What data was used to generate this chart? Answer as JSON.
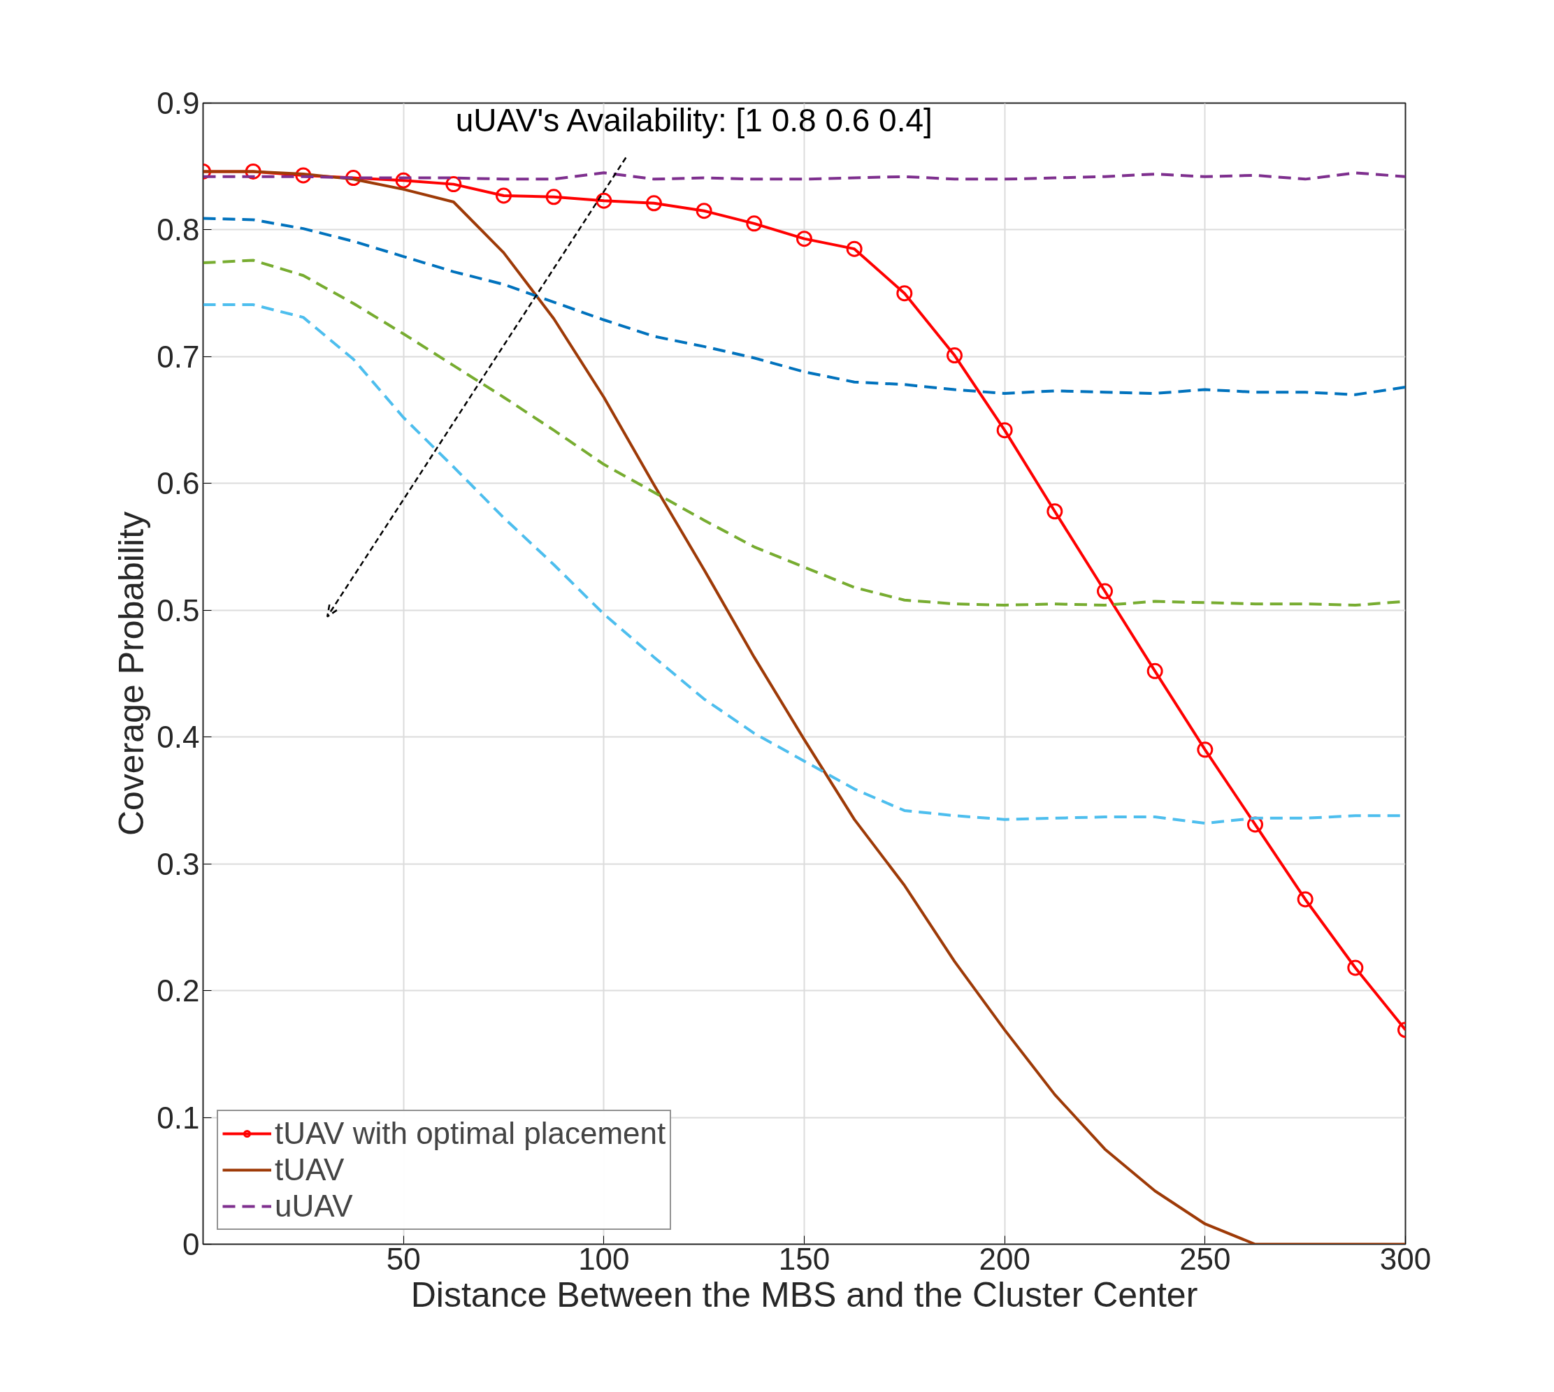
{
  "chart_data": {
    "type": "line",
    "xlabel": "Distance Between the MBS and the Cluster Center",
    "ylabel": "Coverage Probability",
    "x": [
      0,
      12.5,
      25,
      37.5,
      50,
      62.5,
      75,
      87.5,
      100,
      112.5,
      125,
      137.5,
      150,
      162.5,
      175,
      187.5,
      200,
      212.5,
      225,
      237.5,
      250,
      262.5,
      275,
      287.5,
      300
    ],
    "xlim": [
      0,
      300
    ],
    "xticks": [
      50,
      100,
      150,
      200,
      250,
      300
    ],
    "ylim": [
      0,
      0.9
    ],
    "yticks": [
      0,
      0.1,
      0.2,
      0.3,
      0.4,
      0.5,
      0.6,
      0.7,
      0.8,
      0.9
    ],
    "grid": true,
    "legend": "bottom left",
    "annotations": [
      "uUAV's Availability: [1 0.8 0.6 0.4]"
    ],
    "series": [
      {
        "name": "tUAV with optimal placement",
        "color": "#ff0000",
        "marker": "circle",
        "line_style": "solid",
        "values": [
          0.846,
          0.846,
          0.843,
          0.841,
          0.839,
          0.836,
          0.827,
          0.826,
          0.823,
          0.821,
          0.815,
          0.805,
          0.793,
          0.785,
          0.75,
          0.701,
          0.642,
          0.578,
          0.515,
          0.452,
          0.39,
          0.331,
          0.272,
          0.218,
          0.169
        ]
      },
      {
        "name": "tUAV",
        "color": "#9e3a07",
        "marker": "none",
        "line_style": "solid",
        "values": [
          0.846,
          0.846,
          0.844,
          0.84,
          0.832,
          0.822,
          0.782,
          0.73,
          0.668,
          0.599,
          0.532,
          0.463,
          0.398,
          0.335,
          0.283,
          0.223,
          0.169,
          0.118,
          0.075,
          0.042,
          0.016,
          0,
          0,
          0,
          0
        ]
      },
      {
        "name": "uUAV",
        "color": "#7e2f8e",
        "marker": "none",
        "line_style": "dashed",
        "values": [
          0.842,
          0.842,
          0.842,
          0.841,
          0.841,
          0.841,
          0.84,
          0.84,
          0.845,
          0.84,
          0.841,
          0.84,
          0.84,
          0.841,
          0.842,
          0.84,
          0.84,
          0.841,
          0.842,
          0.844,
          0.842,
          0.843,
          0.84,
          0.845,
          0.842
        ]
      },
      {
        "color": "#0072bd",
        "marker": "none",
        "line_style": "dashed",
        "values": [
          0.809,
          0.808,
          0.801,
          0.791,
          0.779,
          0.767,
          0.757,
          0.743,
          0.729,
          0.716,
          0.708,
          0.699,
          0.688,
          0.68,
          0.678,
          0.674,
          0.671,
          0.673,
          0.672,
          0.671,
          0.674,
          0.672,
          0.672,
          0.67,
          0.676
        ]
      },
      {
        "color": "#77ac30",
        "marker": "none",
        "line_style": "dashed",
        "values": [
          0.774,
          0.776,
          0.764,
          0.742,
          0.718,
          0.693,
          0.668,
          0.642,
          0.615,
          0.593,
          0.571,
          0.55,
          0.534,
          0.518,
          0.508,
          0.505,
          0.504,
          0.505,
          0.504,
          0.507,
          0.506,
          0.505,
          0.505,
          0.504,
          0.507
        ]
      },
      {
        "color": "#4dbeee",
        "marker": "none",
        "line_style": "dashed",
        "values": [
          0.741,
          0.741,
          0.731,
          0.698,
          0.652,
          0.613,
          0.573,
          0.536,
          0.497,
          0.463,
          0.43,
          0.403,
          0.381,
          0.359,
          0.342,
          0.338,
          0.335,
          0.336,
          0.337,
          0.337,
          0.332,
          0.336,
          0.336,
          0.338,
          0.338
        ]
      }
    ]
  }
}
